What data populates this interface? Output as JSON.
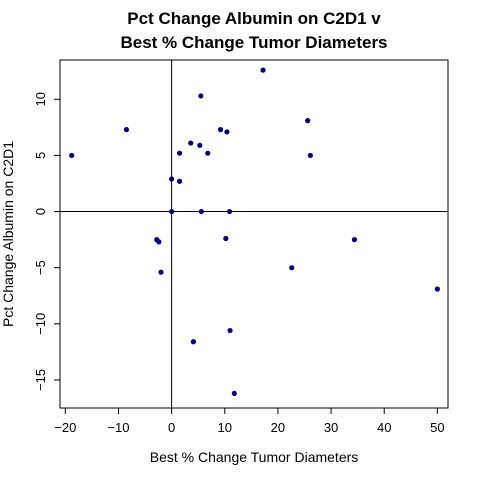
{
  "chart_data": {
    "type": "scatter",
    "title_line1": "Pct Change Albumin on C2D1 v",
    "title_line2": "Best % Change Tumor Diameters",
    "xlabel": "Best % Change Tumor Diameters",
    "ylabel": "Pct Change Albumin on C2D1",
    "xlim": [
      -21,
      52
    ],
    "ylim": [
      -17.5,
      13.5
    ],
    "x_ticks": [
      -20,
      -10,
      0,
      10,
      20,
      30,
      40,
      50
    ],
    "x_tick_labels": [
      "−20",
      "−10",
      "0",
      "10",
      "20",
      "30",
      "40",
      "50"
    ],
    "y_ticks": [
      -15,
      -10,
      -5,
      0,
      5,
      10
    ],
    "y_tick_labels": [
      "−15",
      "−10",
      "−5",
      "0",
      "5",
      "10"
    ],
    "reference_lines": {
      "x": 0,
      "y": 0
    },
    "grid": false,
    "point_color": "#000080",
    "points": [
      {
        "x": -18.8,
        "y": 5.0
      },
      {
        "x": -8.5,
        "y": 7.3
      },
      {
        "x": -2.8,
        "y": -2.5
      },
      {
        "x": -2.4,
        "y": -2.7
      },
      {
        "x": -2.0,
        "y": -5.4
      },
      {
        "x": 0.0,
        "y": 0.0
      },
      {
        "x": 0.0,
        "y": 2.9
      },
      {
        "x": 1.5,
        "y": 2.7
      },
      {
        "x": 1.5,
        "y": 5.2
      },
      {
        "x": 3.6,
        "y": 6.1
      },
      {
        "x": 4.1,
        "y": -11.6
      },
      {
        "x": 5.3,
        "y": 5.9
      },
      {
        "x": 5.5,
        "y": 10.3
      },
      {
        "x": 5.6,
        "y": 0.0
      },
      {
        "x": 6.8,
        "y": 5.2
      },
      {
        "x": 9.2,
        "y": 7.3
      },
      {
        "x": 10.2,
        "y": -2.4
      },
      {
        "x": 10.4,
        "y": 7.1
      },
      {
        "x": 10.9,
        "y": 0.0
      },
      {
        "x": 11.0,
        "y": -10.6
      },
      {
        "x": 11.8,
        "y": -16.2
      },
      {
        "x": 17.2,
        "y": 12.6
      },
      {
        "x": 22.6,
        "y": -5.0
      },
      {
        "x": 25.6,
        "y": 8.1
      },
      {
        "x": 26.1,
        "y": 5.0
      },
      {
        "x": 34.4,
        "y": -2.5
      },
      {
        "x": 50.0,
        "y": -6.9
      }
    ]
  }
}
